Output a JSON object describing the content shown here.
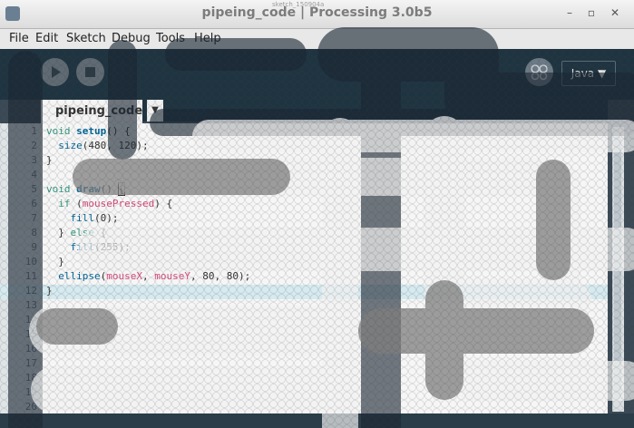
{
  "window": {
    "title": "pipeing_code | Processing 3.0b5",
    "sketch_window_title": "sketch_150904a",
    "controls": {
      "minimize": "–",
      "maximize": "▫",
      "close": "✕"
    }
  },
  "menubar": {
    "items": [
      "File",
      "Edit",
      "Sketch",
      "Debug",
      "Tools",
      "Help"
    ]
  },
  "toolbar": {
    "run_icon": "play-icon",
    "stop_icon": "stop-icon",
    "debugger_icon": "butterfly-icon",
    "mode_label": "Java ▼"
  },
  "tabs": {
    "active_label": "pipeing_code",
    "menu_label": "▼"
  },
  "editor": {
    "line_numbers": [
      "1",
      "2",
      "3",
      "4",
      "5",
      "6",
      "7",
      "8",
      "9",
      "10",
      "11",
      "12",
      "13",
      "14",
      "15",
      "16",
      "17",
      "18",
      "19",
      "20"
    ],
    "current_line": 12
  },
  "colors": {
    "toolbar_bg": "#1f3441",
    "editor_bg": "#f6f6f6",
    "keyword": "#33997e",
    "function": "#006699",
    "variable": "#d94a7a",
    "current_line": "#d6eaf0"
  }
}
